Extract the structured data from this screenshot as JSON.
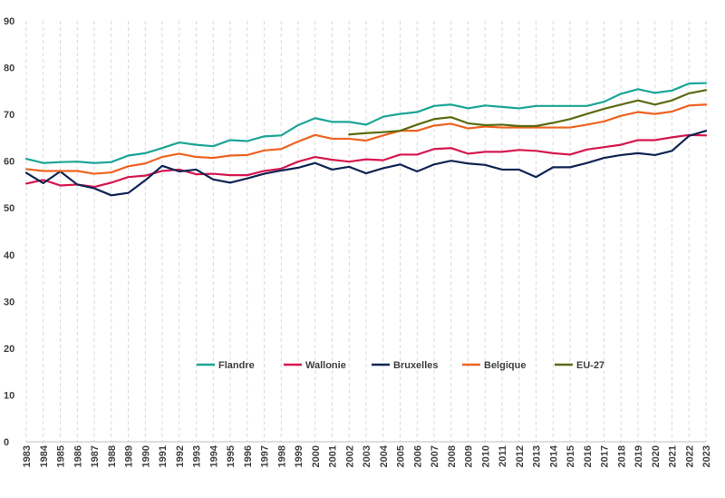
{
  "chart_data": {
    "type": "line",
    "title": "",
    "xlabel": "",
    "ylabel": "",
    "ylim": [
      0,
      90
    ],
    "yticks": [
      0,
      10,
      20,
      30,
      40,
      50,
      60,
      70,
      80,
      90
    ],
    "grid": "vertical dashed",
    "legend_position": "inside-bottom",
    "x": [
      "1983",
      "1984",
      "1985",
      "1986",
      "1987",
      "1988",
      "1989",
      "1990",
      "1991",
      "1992",
      "1993",
      "1994",
      "1995",
      "1996",
      "1997",
      "1998",
      "1999",
      "2000",
      "2001",
      "2002",
      "2003",
      "2004",
      "2005",
      "2006",
      "2007",
      "2008",
      "2009",
      "2010",
      "2011",
      "2012",
      "2013",
      "2014",
      "2015",
      "2016",
      "2017",
      "2018",
      "2019",
      "2020",
      "2021",
      "2022",
      "2023"
    ],
    "series": [
      {
        "name": "Flandre",
        "color": "#1aa596",
        "values": [
          60.5,
          59.6,
          59.8,
          59.9,
          59.6,
          59.8,
          61.2,
          61.7,
          62.8,
          64.0,
          63.5,
          63.2,
          64.5,
          64.3,
          65.3,
          65.5,
          67.7,
          69.2,
          68.4,
          68.4,
          67.8,
          69.5,
          70.1,
          70.5,
          71.8,
          72.1,
          71.3,
          71.9,
          71.6,
          71.3,
          71.8,
          71.8,
          71.8,
          71.8,
          72.7,
          74.4,
          75.4,
          74.6,
          75.1,
          76.6,
          76.7
        ]
      },
      {
        "name": "Wallonie",
        "color": "#d6164f",
        "values": [
          55.2,
          56.0,
          54.8,
          55.0,
          54.5,
          55.4,
          56.6,
          56.9,
          57.9,
          58.2,
          57.2,
          57.3,
          57.0,
          57.0,
          57.9,
          58.4,
          59.9,
          60.9,
          60.3,
          59.9,
          60.4,
          60.2,
          61.4,
          61.4,
          62.6,
          62.8,
          61.6,
          62.0,
          62.0,
          62.4,
          62.2,
          61.7,
          61.4,
          62.5,
          63.0,
          63.5,
          64.5,
          64.5,
          65.1,
          65.6,
          65.5
        ]
      },
      {
        "name": "Bruxelles",
        "color": "#0f2454",
        "values": [
          57.5,
          55.3,
          57.8,
          55.0,
          54.2,
          52.7,
          53.2,
          55.9,
          59.0,
          57.8,
          58.2,
          56.1,
          55.4,
          56.3,
          57.3,
          58.0,
          58.6,
          59.6,
          58.2,
          58.8,
          57.4,
          58.5,
          59.3,
          57.8,
          59.3,
          60.1,
          59.5,
          59.2,
          58.2,
          58.2,
          56.6,
          58.7,
          58.7,
          59.6,
          60.7,
          61.3,
          61.7,
          61.3,
          62.2,
          65.4,
          66.5
        ]
      },
      {
        "name": "Belgique",
        "color": "#ee6321",
        "values": [
          58.3,
          57.9,
          57.9,
          57.9,
          57.3,
          57.6,
          58.9,
          59.5,
          60.9,
          61.6,
          60.9,
          60.7,
          61.2,
          61.3,
          62.3,
          62.6,
          64.2,
          65.6,
          64.8,
          64.8,
          64.4,
          65.5,
          66.5,
          66.5,
          67.6,
          68.0,
          67.0,
          67.4,
          67.2,
          67.2,
          67.2,
          67.2,
          67.2,
          67.8,
          68.5,
          69.7,
          70.5,
          70.1,
          70.6,
          71.9,
          72.1
        ]
      },
      {
        "name": "EU-27",
        "color": "#5a6b10",
        "values": [
          null,
          null,
          null,
          null,
          null,
          null,
          null,
          null,
          null,
          null,
          null,
          null,
          null,
          null,
          null,
          null,
          null,
          null,
          null,
          65.7,
          66.0,
          66.2,
          66.5,
          67.8,
          69.0,
          69.4,
          68.1,
          67.7,
          67.8,
          67.5,
          67.5,
          68.2,
          69.0,
          70.1,
          71.2,
          72.1,
          73.0,
          72.1,
          73.0,
          74.5,
          75.2
        ]
      }
    ]
  }
}
